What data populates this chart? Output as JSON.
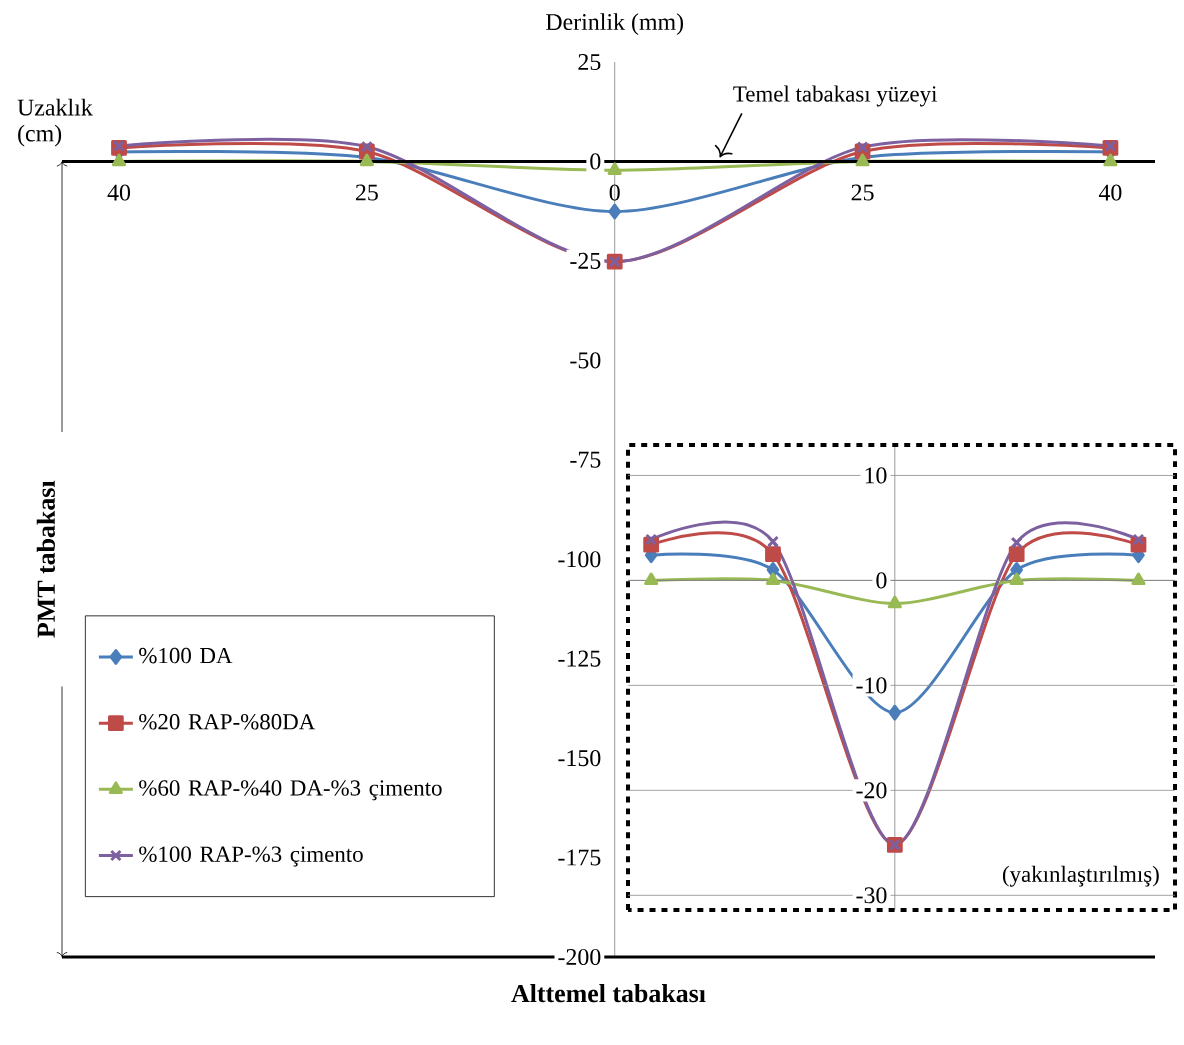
{
  "chart_data": [
    {
      "type": "line",
      "xlabel": "Uzaklık (cm)",
      "ylabel": "Derinlik (mm)",
      "categories": [
        "40",
        "25",
        "0",
        "25",
        "40"
      ],
      "ylim": [
        -200,
        25
      ],
      "yticks": [
        -200,
        -175,
        -150,
        -125,
        -100,
        -75,
        -50,
        -25,
        0,
        25
      ],
      "legend": "bottom left",
      "series": [
        {
          "name": "%100 DA",
          "color": "#4a7ebb",
          "marker": "diamond",
          "values": [
            2.4,
            1.0,
            -12.6,
            1.0,
            2.4
          ]
        },
        {
          "name": "%20 RAP-%80DA",
          "color": "#be4b48",
          "marker": "square",
          "values": [
            3.4,
            2.5,
            -25.2,
            2.5,
            3.4
          ]
        },
        {
          "name": "%60 RAP-%40 DA-%3 çimento",
          "color": "#98b954",
          "marker": "triangle",
          "values": [
            0,
            0,
            -2.2,
            0,
            0
          ]
        },
        {
          "name": "%100 RAP-%3 çimento",
          "color": "#7d60a0",
          "marker": "cross",
          "values": [
            3.9,
            3.7,
            -25.2,
            3.6,
            3.9
          ]
        }
      ],
      "ref_lines": [
        {
          "axis": "y",
          "value": -200,
          "label": "Alttemel tabakası",
          "color": "#000000"
        }
      ],
      "annotations": [
        "Temel tabakası yüzeyi",
        "PMT tabakası"
      ]
    },
    {
      "type": "line",
      "categories": [
        null,
        null,
        null,
        null,
        null
      ],
      "ylim": [
        -31.4,
        12.9
      ],
      "yticks": [
        -30,
        -20,
        -10,
        0,
        10
      ],
      "grid": "y",
      "series": [
        {
          "color": "#4a7ebb",
          "marker": "diamond",
          "values": [
            2.4,
            1.0,
            -12.6,
            1.0,
            2.4
          ]
        },
        {
          "color": "#be4b48",
          "marker": "square",
          "values": [
            3.4,
            2.5,
            -25.2,
            2.5,
            3.4
          ]
        },
        {
          "color": "#98b954",
          "marker": "triangle",
          "values": [
            0,
            0,
            -2.2,
            0,
            0
          ]
        },
        {
          "color": "#7d60a0",
          "marker": "cross",
          "values": [
            3.9,
            3.7,
            -25.2,
            3.6,
            3.9
          ]
        }
      ],
      "annotations": [
        "(yakınlaştırılmış)"
      ]
    }
  ]
}
